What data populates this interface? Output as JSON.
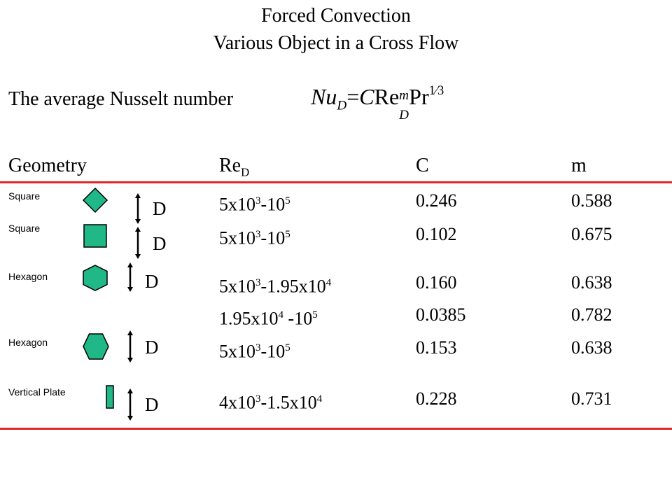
{
  "title_line1": "Forced Convection",
  "title_line2": "Various Object in a Cross Flow",
  "intro_text": "The average Nusselt number",
  "equation": {
    "nu": "Nu",
    "nu_sub": "D",
    "equals": "=",
    "c": "C",
    "re": "Re",
    "re_sup": "m",
    "re_sub": "D",
    "pr": "Pr",
    "pr_exp": "1⁄3"
  },
  "table": {
    "headers": {
      "geometry": "Geometry",
      "re_base": "Re",
      "re_sub": "D",
      "c": "C",
      "m": "m"
    },
    "rows": [
      {
        "geometry": "Square",
        "shape": "diamond",
        "d_label": "D",
        "re": [
          {
            "t": "5x10"
          },
          {
            "sup": "3"
          },
          {
            "t": "-10"
          },
          {
            "sup": "5"
          }
        ],
        "c": "0.246",
        "m": "0.588"
      },
      {
        "geometry": "Square",
        "shape": "square",
        "d_label": "D",
        "re": [
          {
            "t": "5x10"
          },
          {
            "sup": "3"
          },
          {
            "t": "-10"
          },
          {
            "sup": "5"
          }
        ],
        "c": "0.102",
        "m": "0.675"
      },
      {
        "geometry": "Hexagon",
        "shape": "hexagon-flat-vertical",
        "d_label": "D",
        "re": [
          {
            "t": "5x10"
          },
          {
            "sup": "3"
          },
          {
            "t": "-1.95x10"
          },
          {
            "sup": "4"
          }
        ],
        "c": "0.160",
        "m": "0.638"
      },
      {
        "geometry": "",
        "shape": "",
        "d_label": "",
        "re": [
          {
            "t": "1.95x10"
          },
          {
            "sup": "4"
          },
          {
            "t": " -10"
          },
          {
            "sup": "5"
          }
        ],
        "c": "0.0385",
        "m": "0.782"
      },
      {
        "geometry": "Hexagon",
        "shape": "hexagon-pointed-vertical",
        "d_label": "D",
        "re": [
          {
            "t": "5x10"
          },
          {
            "sup": "3"
          },
          {
            "t": "-10"
          },
          {
            "sup": "5"
          }
        ],
        "c": "0.153",
        "m": "0.638"
      },
      {
        "geometry": "Vertical Plate",
        "shape": "plate",
        "d_label": "D",
        "re": [
          {
            "t": "4x10"
          },
          {
            "sup": "3"
          },
          {
            "t": "-1.5x10"
          },
          {
            "sup": "4"
          }
        ],
        "c": "0.228",
        "m": "0.731"
      }
    ]
  },
  "colors": {
    "shape_fill": "#1fb886",
    "shape_stroke": "#000000",
    "rule": "#e02828"
  }
}
